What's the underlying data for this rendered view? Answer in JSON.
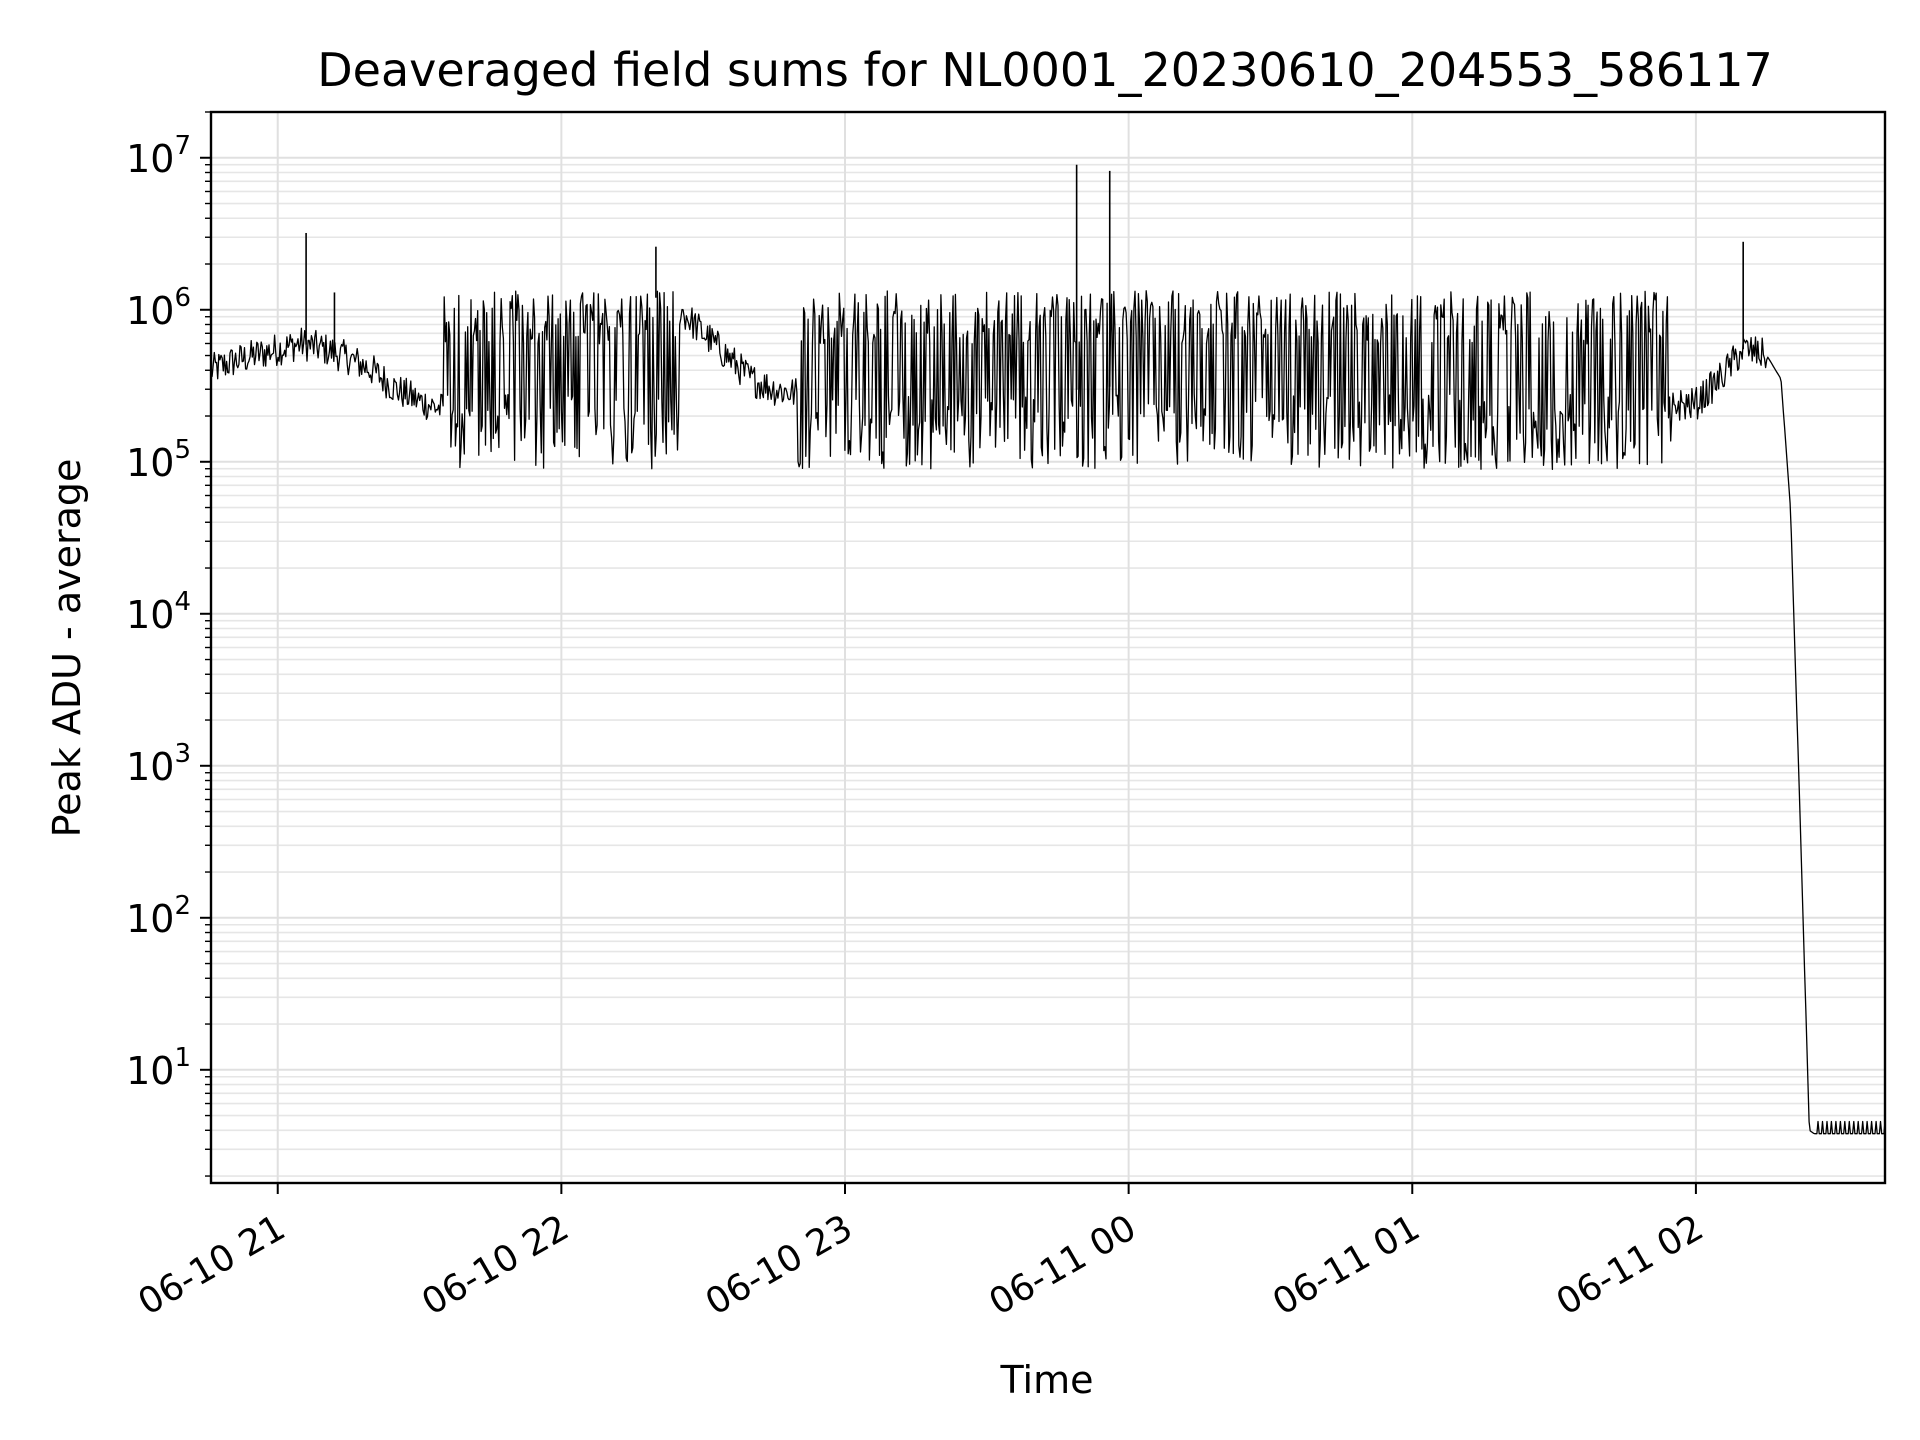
{
  "chart_data": {
    "type": "line",
    "title": "Deaveraged field sums for NL0001_20230610_204553_586117",
    "xlabel": "Time",
    "ylabel": "Peak ADU - average",
    "yscale": "log",
    "ylim": [
      1.8,
      20000000
    ],
    "xlim": [
      "06-10 20:45:53",
      "06-11 02:40:00"
    ],
    "grid": true,
    "x_ticks": [
      {
        "label": "06-10 21",
        "value": "06-10 21:00"
      },
      {
        "label": "06-10 22",
        "value": "06-10 22:00"
      },
      {
        "label": "06-10 23",
        "value": "06-10 23:00"
      },
      {
        "label": "06-11 00",
        "value": "06-11 00:00"
      },
      {
        "label": "06-11 01",
        "value": "06-11 01:00"
      },
      {
        "label": "06-11 02",
        "value": "06-11 02:00"
      }
    ],
    "y_ticks": [
      {
        "base": "10",
        "exp": "1",
        "value": 10
      },
      {
        "base": "10",
        "exp": "2",
        "value": 100
      },
      {
        "base": "10",
        "exp": "3",
        "value": 1000
      },
      {
        "base": "10",
        "exp": "4",
        "value": 10000
      },
      {
        "base": "10",
        "exp": "5",
        "value": 100000
      },
      {
        "base": "10",
        "exp": "6",
        "value": 1000000
      },
      {
        "base": "10",
        "exp": "7",
        "value": 10000000
      }
    ],
    "series": [
      {
        "color": "#000000",
        "x": [
          "06-10 20:46",
          "06-10 20:50",
          "06-10 20:55",
          "06-10 21:00",
          "06-10 21:05",
          "06-10 21:10",
          "06-10 21:15",
          "06-10 21:20",
          "06-10 21:25",
          "06-10 21:30",
          "06-10 21:35",
          "06-10 21:40",
          "06-10 21:45",
          "06-10 21:50",
          "06-10 21:55",
          "06-10 22:00",
          "06-10 22:05",
          "06-10 22:10",
          "06-10 22:15",
          "06-10 22:20",
          "06-10 22:25",
          "06-10 22:30",
          "06-10 22:35",
          "06-10 22:40",
          "06-10 22:45",
          "06-10 22:50",
          "06-10 22:55",
          "06-10 23:00",
          "06-10 23:10",
          "06-10 23:20",
          "06-10 23:30",
          "06-10 23:40",
          "06-10 23:50",
          "06-11 00:00",
          "06-11 00:10",
          "06-11 00:20",
          "06-11 00:30",
          "06-11 00:40",
          "06-11 00:50",
          "06-11 01:00",
          "06-11 01:10",
          "06-11 01:20",
          "06-11 01:30",
          "06-11 01:40",
          "06-11 01:50",
          "06-11 02:00",
          "06-11 02:05",
          "06-11 02:10",
          "06-11 02:15",
          "06-11 02:18",
          "06-11 02:20",
          "06-11 02:22",
          "06-11 02:24",
          "06-11 02:25",
          "06-11 02:30",
          "06-11 02:35",
          "06-11 02:40"
        ],
        "y": [
          400000,
          450000,
          500000,
          550000,
          600000,
          550000,
          480000,
          400000,
          300000,
          250000,
          220000,
          180000,
          150000,
          120000,
          110000,
          100000,
          110000,
          120000,
          700000,
          1200000,
          1000000,
          700000,
          500000,
          350000,
          300000,
          280000,
          260000,
          250000,
          240000,
          250000,
          260000,
          280000,
          300000,
          320000,
          300000,
          290000,
          280000,
          270000,
          260000,
          250000,
          240000,
          250000,
          250000,
          240000,
          230000,
          240000,
          350000,
          550000,
          500000,
          350000,
          50000,
          500,
          4,
          3.8,
          3.8,
          3.8,
          3.8
        ]
      }
    ],
    "spikes": [
      {
        "x": "06-10 21:06",
        "y": 3200000
      },
      {
        "x": "06-10 21:12",
        "y": 1300000
      },
      {
        "x": "06-10 22:20",
        "y": 2600000
      },
      {
        "x": "06-10 23:49",
        "y": 9000000
      },
      {
        "x": "06-10 23:56",
        "y": 8200000
      },
      {
        "x": "06-11 02:10",
        "y": 2800000
      }
    ]
  }
}
